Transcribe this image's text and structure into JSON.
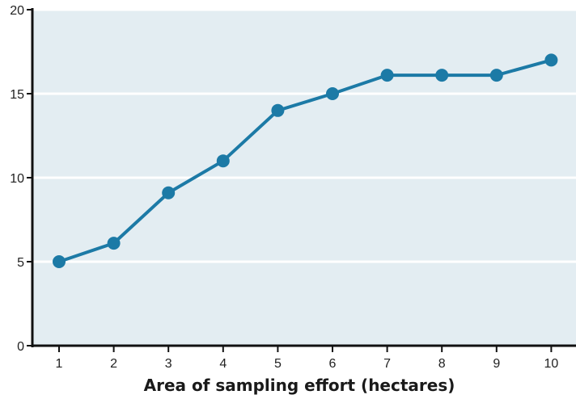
{
  "colors": {
    "plot_background": "#e3edf2",
    "gridline": "#ffffff",
    "axis": "#111111",
    "series": "#1c7aa6"
  },
  "chart_data": {
    "type": "line",
    "title": "",
    "xlabel": "Area of sampling effort (hectares)",
    "ylabel": "",
    "x": [
      1,
      2,
      3,
      4,
      5,
      6,
      7,
      8,
      9,
      10
    ],
    "series": [
      {
        "values": [
          5,
          6.1,
          9.1,
          11,
          14,
          15,
          16.1,
          16.1,
          16.1,
          17
        ]
      }
    ],
    "xticks": [
      1,
      2,
      3,
      4,
      5,
      6,
      7,
      8,
      9,
      10
    ],
    "yticks": [
      0,
      5,
      10,
      15,
      20
    ],
    "xlim": [
      0.5,
      10.5
    ],
    "ylim": [
      0,
      20
    ],
    "grid": "horizontal",
    "markers": "filled-circle",
    "legend": "none"
  }
}
